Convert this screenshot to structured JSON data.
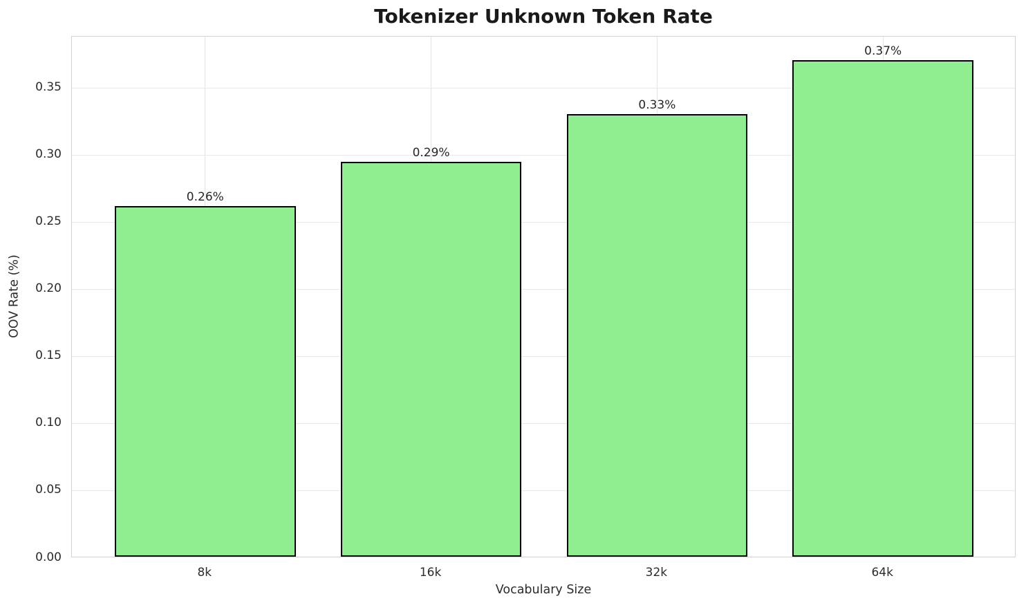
{
  "chart_data": {
    "type": "bar",
    "title": "Tokenizer Unknown Token Rate",
    "xlabel": "Vocabulary Size",
    "ylabel": "OOV Rate (%)",
    "categories": [
      "8k",
      "16k",
      "32k",
      "64k"
    ],
    "values": [
      0.261,
      0.294,
      0.33,
      0.37
    ],
    "bar_labels": [
      "0.26%",
      "0.29%",
      "0.33%",
      "0.37%"
    ],
    "series": [
      {
        "name": "OOV Rate",
        "values": [
          0.261,
          0.294,
          0.33,
          0.37
        ]
      }
    ],
    "ylim": [
      0,
      0.3885
    ],
    "yticks": [
      0,
      0.05,
      0.1,
      0.15,
      0.2,
      0.25,
      0.3,
      0.35
    ],
    "ytick_labels": [
      "0.00",
      "0.05",
      "0.10",
      "0.15",
      "0.20",
      "0.25",
      "0.30",
      "0.35"
    ],
    "grid": true,
    "legend": false,
    "bar_color": "#90EE90",
    "bar_edge_color": "#000000"
  }
}
